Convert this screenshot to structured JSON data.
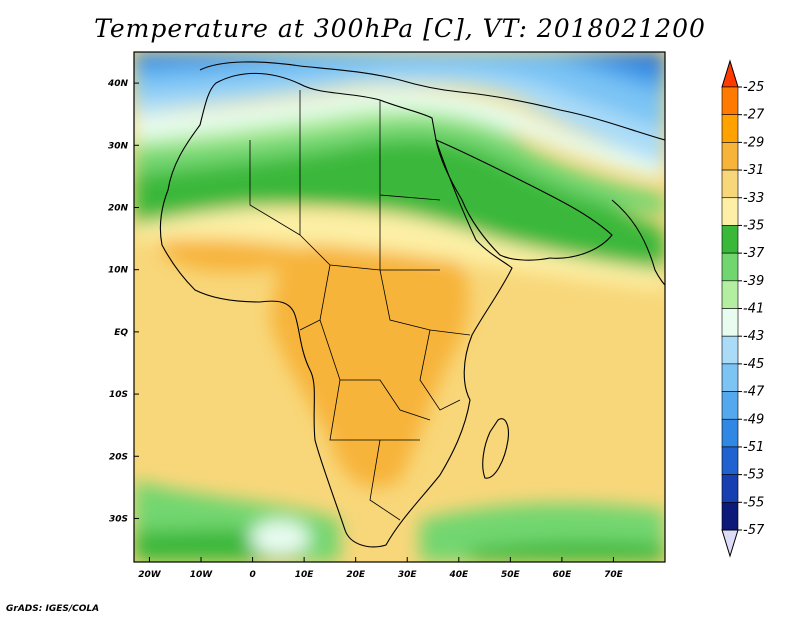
{
  "title": "Temperature at 300hPa [C], VT: 2018021200",
  "credit": "GrADS: IGES/COLA",
  "map": {
    "lon_range": [
      -23,
      80
    ],
    "lat_range": [
      -37,
      45
    ],
    "lon_ticks": [
      {
        "value": -20,
        "label": "20W"
      },
      {
        "value": -10,
        "label": "10W"
      },
      {
        "value": 0,
        "label": "0"
      },
      {
        "value": 10,
        "label": "10E"
      },
      {
        "value": 20,
        "label": "20E"
      },
      {
        "value": 30,
        "label": "30E"
      },
      {
        "value": 40,
        "label": "40E"
      },
      {
        "value": 50,
        "label": "50E"
      },
      {
        "value": 60,
        "label": "60E"
      },
      {
        "value": 70,
        "label": "70E"
      }
    ],
    "lat_ticks": [
      {
        "value": 40,
        "label": "40N"
      },
      {
        "value": 30,
        "label": "30N"
      },
      {
        "value": 20,
        "label": "20N"
      },
      {
        "value": 10,
        "label": "10N"
      },
      {
        "value": 0,
        "label": "EQ"
      },
      {
        "value": -10,
        "label": "10S"
      },
      {
        "value": -20,
        "label": "20S"
      },
      {
        "value": -30,
        "label": "30S"
      }
    ]
  },
  "colorbar": {
    "labels": [
      "-25",
      "-27",
      "-29",
      "-31",
      "-33",
      "-35",
      "-37",
      "-39",
      "-41",
      "-43",
      "-45",
      "-47",
      "-49",
      "-51",
      "-53",
      "-55",
      "-57"
    ],
    "colors": [
      "#ff3b00",
      "#ff7a00",
      "#ffa200",
      "#f7b43a",
      "#f8d77a",
      "#fdf0a6",
      "#3ab83a",
      "#72d670",
      "#b4eea0",
      "#e8fcf0",
      "#aadcf8",
      "#7cc4f4",
      "#54a8ee",
      "#3188e4",
      "#1f62d0",
      "#163fb2",
      "#0c1a7a"
    ]
  }
}
